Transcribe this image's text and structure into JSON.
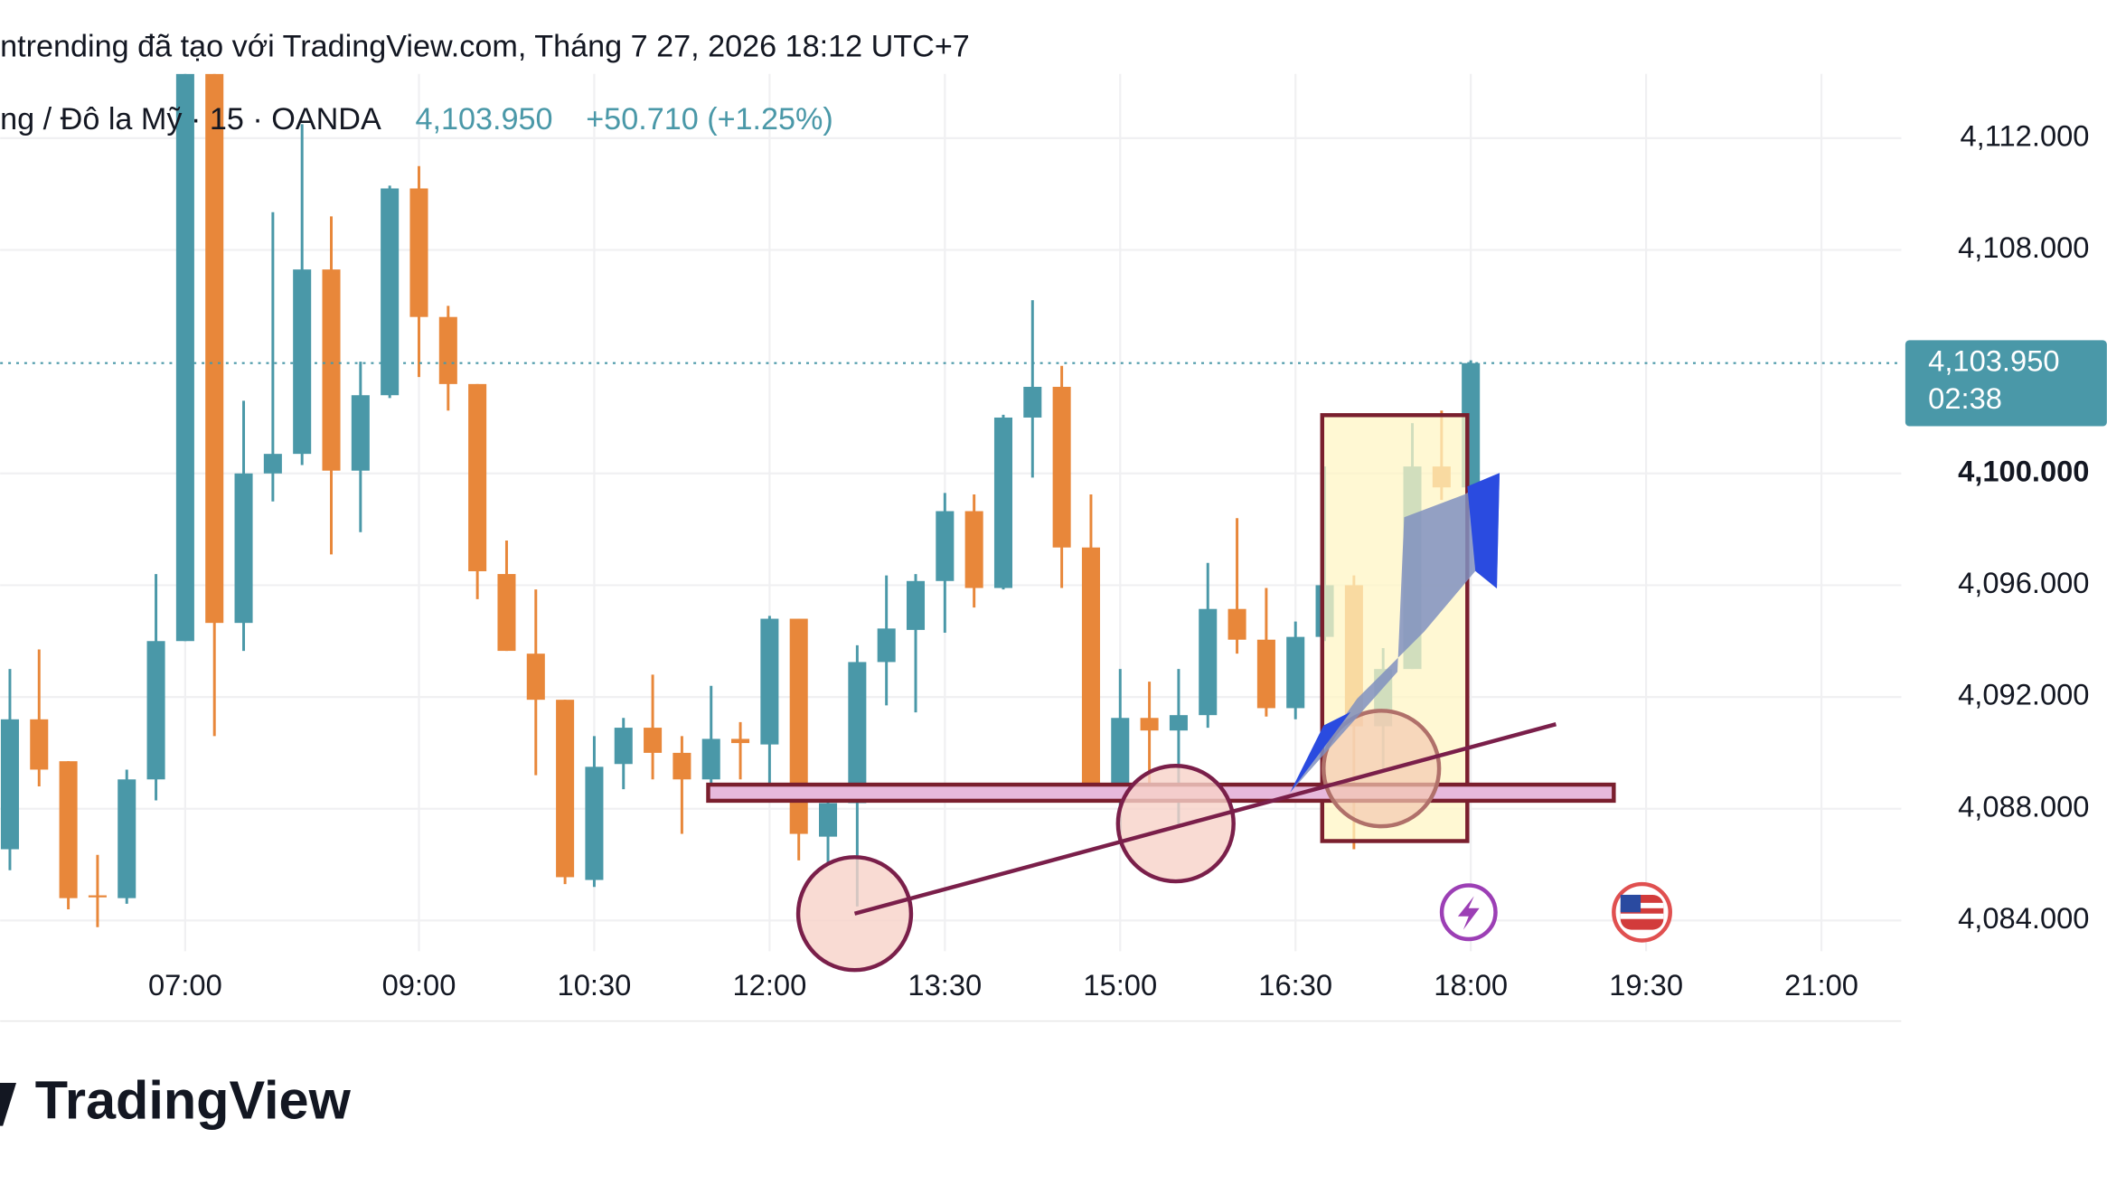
{
  "chart_data": {
    "type": "candlestick",
    "title": "ntrending đã tạo với TradingView.com, Tháng 7 27, 2026 18:12 UTC+7",
    "symbol": "ng / Đô la Mỹ · 15 · OANDA",
    "price_text": "4,103.950",
    "change_text": "+50.710 (+1.25%)",
    "logo": "TradingView",
    "up_color": "#4a98a8",
    "down_color": "#e8873a",
    "grid": true,
    "x": [
      "05:30",
      "05:45",
      "06:00",
      "06:15",
      "06:30",
      "06:45",
      "07:00",
      "07:15",
      "07:30",
      "07:45",
      "08:00",
      "08:15",
      "08:30",
      "08:45",
      "09:00",
      "09:15",
      "09:30",
      "09:45",
      "10:00",
      "10:15",
      "10:30",
      "10:45",
      "11:00",
      "11:15",
      "11:30",
      "11:45",
      "12:00",
      "12:15",
      "12:30",
      "12:45",
      "13:00",
      "13:15",
      "13:30",
      "13:45",
      "14:00",
      "14:15",
      "14:30",
      "14:45",
      "15:00",
      "15:15",
      "15:30",
      "15:45",
      "16:00",
      "16:15",
      "16:30",
      "16:45",
      "17:00",
      "17:15",
      "17:30",
      "17:45",
      "18:00"
    ],
    "open": [
      4086.55,
      4091.2,
      4089.7,
      4084.9,
      4084.8,
      4089.05,
      4094.0,
      4114.3,
      4094.65,
      4100.0,
      4100.7,
      4107.3,
      4100.1,
      4102.8,
      4110.2,
      4105.6,
      4103.2,
      4096.4,
      4093.55,
      4091.9,
      4085.45,
      4089.6,
      4090.9,
      4090.0,
      4089.05,
      4090.5,
      4090.3,
      4094.8,
      4087.0,
      4088.2,
      4093.25,
      4094.4,
      4096.15,
      4098.65,
      4095.9,
      4102.0,
      4103.1,
      4097.35,
      4088.8,
      4091.25,
      4090.8,
      4091.35,
      4095.15,
      4094.05,
      4091.6,
      4094.15,
      4096.0,
      4090.95,
      4093.0,
      4100.25,
      4099.5
    ],
    "high": [
      4093.0,
      4093.7,
      4089.7,
      4086.35,
      4089.4,
      4096.4,
      4114.3,
      4114.3,
      4102.6,
      4109.35,
      4112.5,
      4109.2,
      4104.0,
      4110.3,
      4111.0,
      4106.0,
      4103.2,
      4097.6,
      4095.85,
      4091.9,
      4090.6,
      4091.25,
      4092.8,
      4090.6,
      4092.4,
      4091.1,
      4094.9,
      4094.8,
      4088.9,
      4093.85,
      4096.35,
      4096.4,
      4099.3,
      4099.25,
      4102.1,
      4106.2,
      4103.85,
      4099.25,
      4093.0,
      4092.55,
      4093.0,
      4096.8,
      4098.4,
      4095.9,
      4094.7,
      4100.25,
      4096.35,
      4093.75,
      4101.8,
      4102.25,
      4104.05
    ],
    "low": [
      4085.8,
      4088.8,
      4084.4,
      4083.76,
      4084.6,
      4088.3,
      4094.0,
      4090.6,
      4093.65,
      4099.0,
      4100.3,
      4097.1,
      4097.9,
      4102.7,
      4103.45,
      4102.25,
      4095.5,
      4093.65,
      4089.2,
      4085.3,
      4085.2,
      4088.7,
      4089.05,
      4087.1,
      4088.55,
      4089.05,
      4088.55,
      4086.15,
      4086.05,
      4084.5,
      4091.7,
      4091.45,
      4094.3,
      4095.2,
      4095.85,
      4099.85,
      4095.9,
      4088.65,
      4087.1,
      4088.55,
      4087.35,
      4090.9,
      4093.55,
      4091.3,
      4091.2,
      4094.0,
      4086.55,
      4089.3,
      4093.0,
      4099.05,
      4099.5
    ],
    "close": [
      4091.2,
      4089.4,
      4084.8,
      4084.85,
      4089.05,
      4094.0,
      4114.3,
      4094.65,
      4100.0,
      4100.7,
      4107.3,
      4100.1,
      4102.8,
      4110.2,
      4105.6,
      4103.2,
      4096.5,
      4093.65,
      4091.9,
      4085.55,
      4089.5,
      4090.9,
      4090.0,
      4089.05,
      4090.5,
      4090.35,
      4094.8,
      4087.1,
      4088.2,
      4093.25,
      4094.45,
      4096.15,
      4098.65,
      4095.9,
      4102.0,
      4103.1,
      4097.35,
      4088.8,
      4091.25,
      4090.8,
      4091.35,
      4095.15,
      4094.05,
      4091.6,
      4094.15,
      4096.0,
      4090.95,
      4093.0,
      4100.25,
      4099.5,
      4103.95
    ],
    "xlim": [
      "05:25",
      "21:41"
    ],
    "xticks": [
      "07:00",
      "09:00",
      "10:30",
      "12:00",
      "13:30",
      "15:00",
      "16:30",
      "18:00",
      "19:30",
      "21:00"
    ],
    "ylim": [
      4082.9,
      4114.3
    ],
    "yticks": [
      {
        "value": 4084,
        "label": "4,084.000"
      },
      {
        "value": 4088,
        "label": "4,088.000"
      },
      {
        "value": 4092,
        "label": "4,092.000"
      },
      {
        "value": 4096,
        "label": "4,096.000"
      },
      {
        "value": 4100,
        "label": "4,100.000"
      },
      {
        "value": 4108,
        "label": "4,108.000"
      },
      {
        "value": 4112,
        "label": "4,112.000"
      }
    ],
    "last_price": {
      "value": 4103.95,
      "label": "4,103.950"
    },
    "countdown": "02:38"
  }
}
